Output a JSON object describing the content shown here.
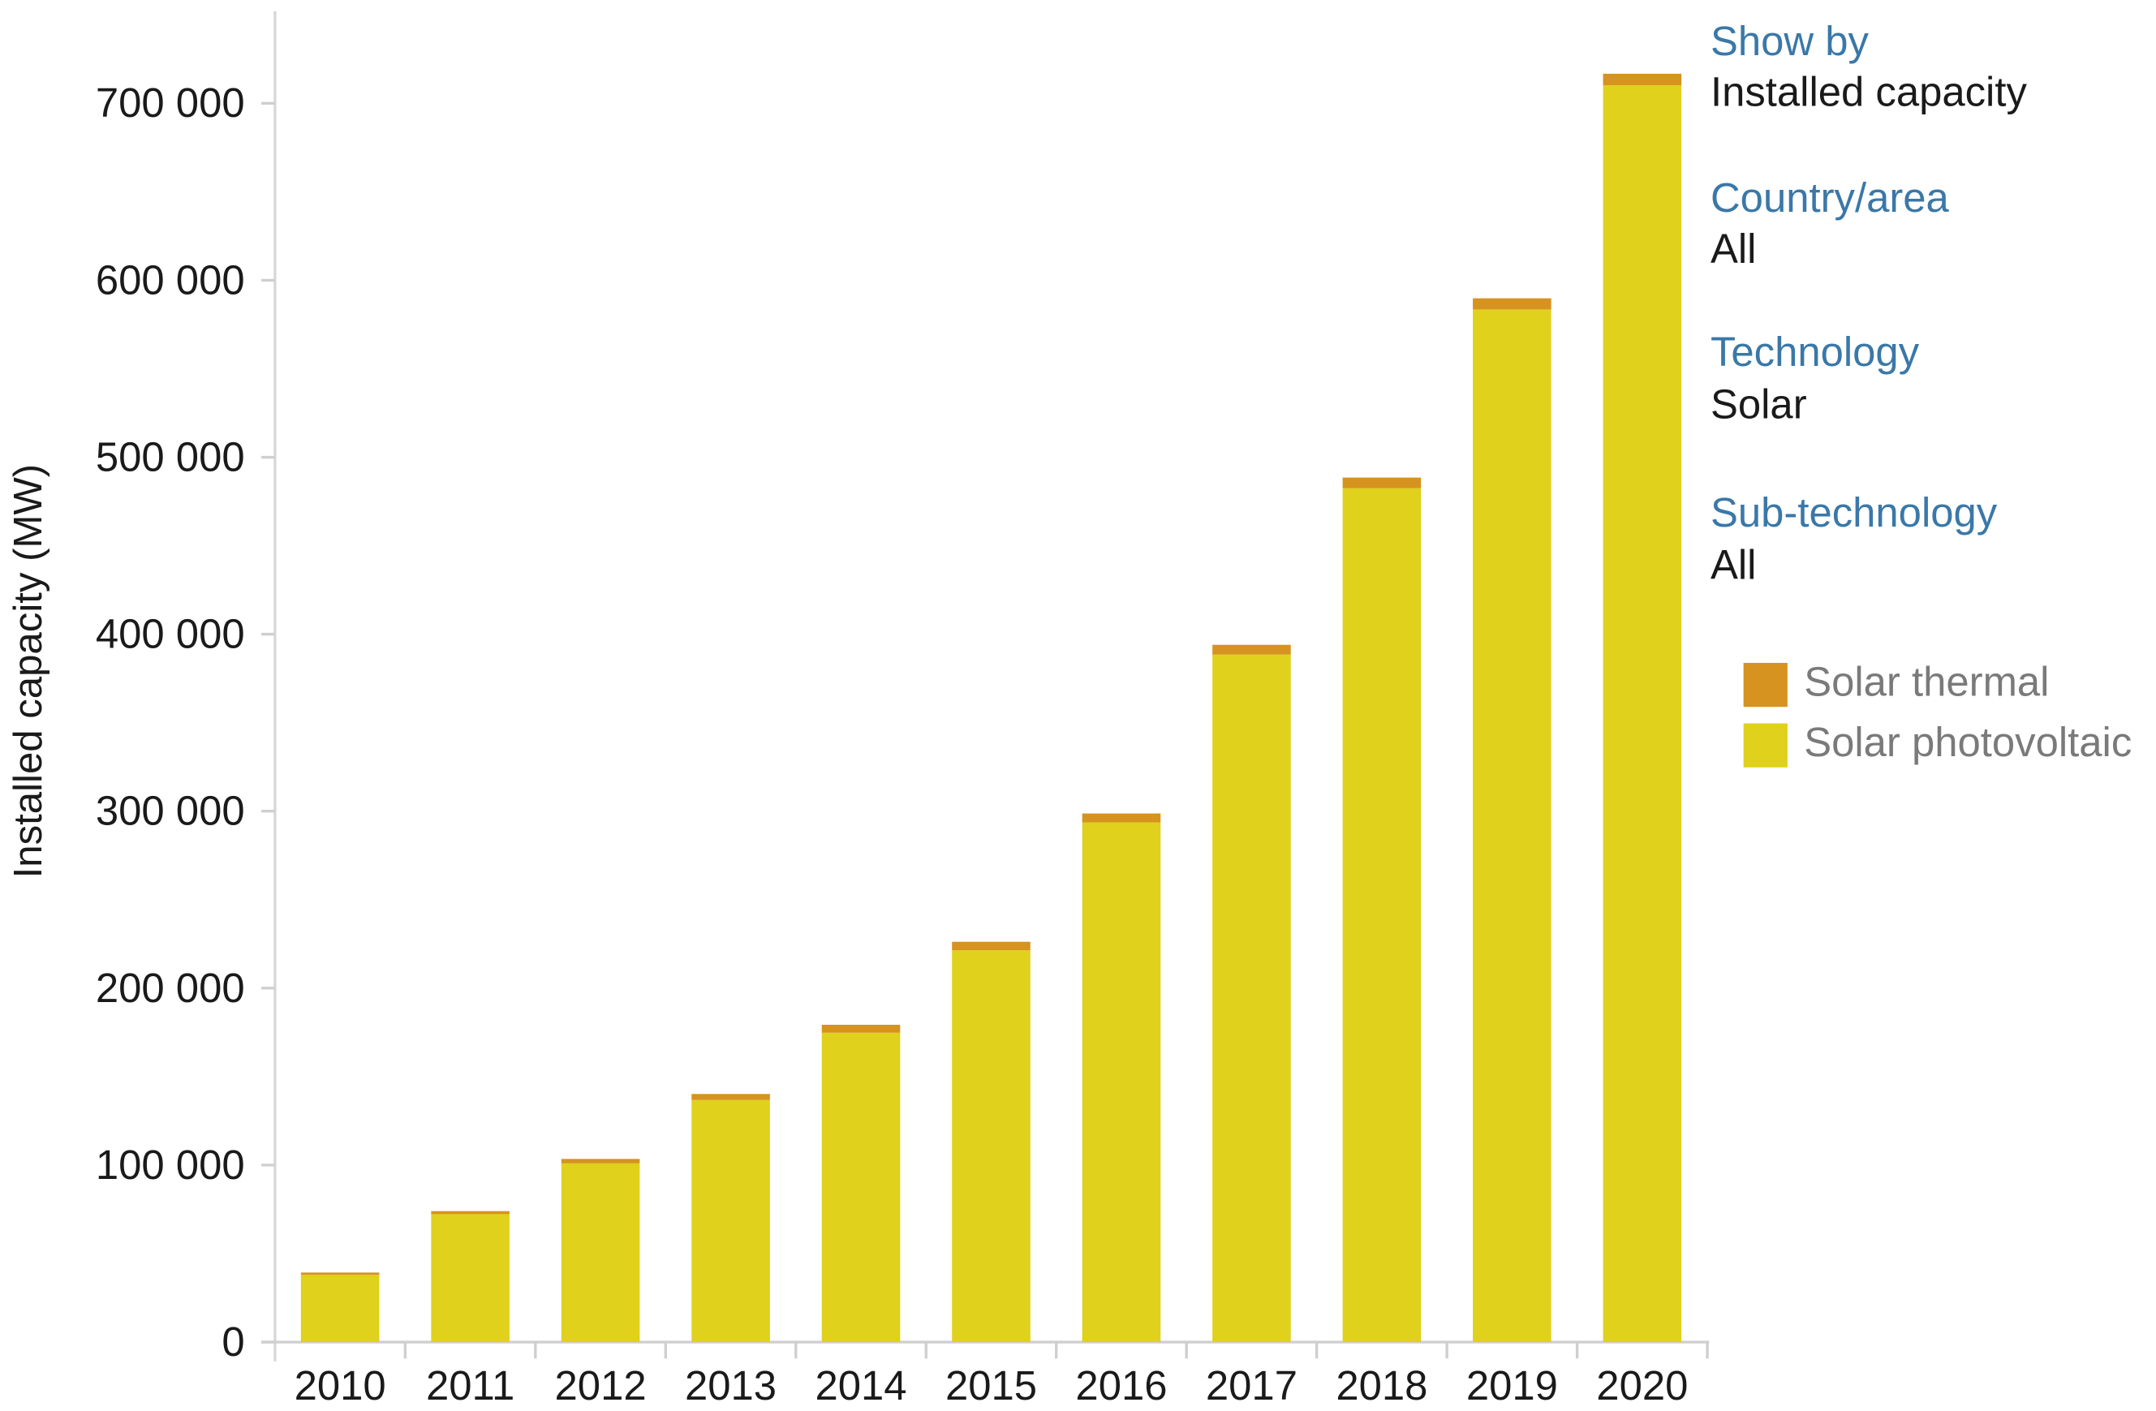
{
  "chart_data": {
    "type": "bar",
    "stacked": true,
    "title": "",
    "xlabel": "",
    "ylabel": "Installed capacity (MW)",
    "ylim": [
      0,
      700000
    ],
    "yticks": [
      0,
      100000,
      200000,
      300000,
      400000,
      500000,
      600000,
      700000
    ],
    "ytick_labels": [
      "0",
      "100 000",
      "200 000",
      "300 000",
      "400 000",
      "500 000",
      "600 000",
      "700 000"
    ],
    "grid": false,
    "categories": [
      "2010",
      "2011",
      "2012",
      "2013",
      "2014",
      "2015",
      "2016",
      "2017",
      "2018",
      "2019",
      "2020"
    ],
    "series": [
      {
        "name": "Solar photovoltaic",
        "color": "#dfd11c",
        "values": [
          38000,
          72300,
          101000,
          136800,
          174800,
          221400,
          293700,
          388500,
          482500,
          583500,
          710200
        ]
      },
      {
        "name": "Solar thermal",
        "color": "#d6931f",
        "values": [
          1300,
          1700,
          2500,
          3400,
          4500,
          4800,
          5000,
          5500,
          6000,
          6300,
          6500
        ]
      }
    ],
    "legend_placement": "right"
  },
  "filters": [
    {
      "heading": "Show by",
      "value": "Installed capacity"
    },
    {
      "heading": "Country/area",
      "value": "All"
    },
    {
      "heading": "Technology",
      "value": "Solar"
    },
    {
      "heading": "Sub-technology",
      "value": "All"
    }
  ],
  "legend": [
    {
      "label": "Solar thermal",
      "color": "#d6931f"
    },
    {
      "label": "Solar photovoltaic",
      "color": "#dfd11c"
    }
  ]
}
